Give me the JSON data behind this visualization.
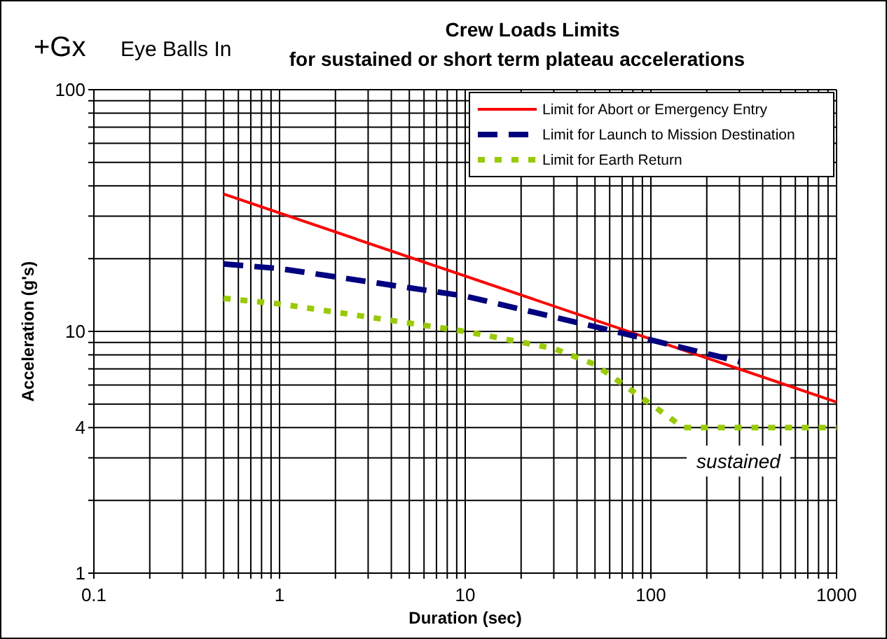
{
  "chart_data": {
    "type": "line",
    "title": "Crew Loads Limits",
    "subtitle": "for sustained or short term plateau accelerations",
    "xlabel": "Duration (sec)",
    "ylabel": "Acceleration (g's)",
    "annotations": [
      "+Gx",
      "Eye Balls  In",
      "sustained"
    ],
    "log": "xy",
    "grid": true,
    "legend": "top right",
    "xlim": [
      0.1,
      1000
    ],
    "ylim": [
      1,
      100
    ],
    "xticks": [
      0.1,
      {
        "value": 0.2,
        "label": null
      },
      {
        "value": 0.3,
        "label": null
      },
      {
        "value": 0.4,
        "label": null
      },
      {
        "value": 0.5,
        "label": null
      },
      {
        "value": 0.6,
        "label": null
      },
      {
        "value": 0.7,
        "label": null
      },
      {
        "value": 0.8,
        "label": null
      },
      {
        "value": 0.9,
        "label": null
      },
      1,
      {
        "value": 2,
        "label": null
      },
      {
        "value": 3,
        "label": null
      },
      {
        "value": 4,
        "label": null
      },
      {
        "value": 5,
        "label": null
      },
      {
        "value": 6,
        "label": null
      },
      {
        "value": 7,
        "label": null
      },
      {
        "value": 8,
        "label": null
      },
      {
        "value": 9,
        "label": null
      },
      10,
      {
        "value": 20,
        "label": null
      },
      {
        "value": 30,
        "label": null
      },
      {
        "value": 40,
        "label": null
      },
      {
        "value": 50,
        "label": null
      },
      {
        "value": 60,
        "label": null
      },
      {
        "value": 70,
        "label": null
      },
      {
        "value": 80,
        "label": null
      },
      {
        "value": 90,
        "label": null
      },
      100,
      {
        "value": 200,
        "label": null
      },
      {
        "value": 300,
        "label": null
      },
      {
        "value": 400,
        "label": null
      },
      {
        "value": 500,
        "label": null
      },
      {
        "value": 600,
        "label": null
      },
      {
        "value": 700,
        "label": null
      },
      {
        "value": 800,
        "label": null
      },
      {
        "value": 900,
        "label": null
      },
      1000
    ],
    "yticks": [
      1,
      {
        "value": 2,
        "label": null
      },
      {
        "value": 3,
        "label": null
      },
      4,
      {
        "value": 5,
        "label": null
      },
      {
        "value": 6,
        "label": null
      },
      {
        "value": 7,
        "label": null
      },
      {
        "value": 8,
        "label": null
      },
      {
        "value": 9,
        "label": null
      },
      10,
      {
        "value": 20,
        "label": null
      },
      {
        "value": 30,
        "label": null
      },
      {
        "value": 40,
        "label": null
      },
      {
        "value": 50,
        "label": null
      },
      {
        "value": 60,
        "label": null
      },
      {
        "value": 70,
        "label": null
      },
      {
        "value": 80,
        "label": null
      },
      {
        "value": 90,
        "label": null
      },
      100
    ],
    "series": [
      {
        "name": "Limit for Abort or Emergency Entry",
        "color": "#ff0000",
        "line_style": "solid",
        "x": [
          0.5,
          1000
        ],
        "values": [
          37,
          5.1
        ]
      },
      {
        "name": "Limit for Launch to Mission Destination",
        "color": "#000080",
        "line_style": "dashed",
        "x": [
          0.5,
          1,
          10,
          90,
          300
        ],
        "values": [
          19,
          18.2,
          14,
          9.4,
          7.5
        ]
      },
      {
        "name": "Limit for Earth Return",
        "color": "#99cc00",
        "line_style": "dotted",
        "x": [
          0.5,
          1,
          10,
          30,
          50,
          100,
          150,
          1000
        ],
        "values": [
          13.7,
          13,
          10,
          8.5,
          7.3,
          5,
          4,
          4
        ]
      }
    ]
  }
}
